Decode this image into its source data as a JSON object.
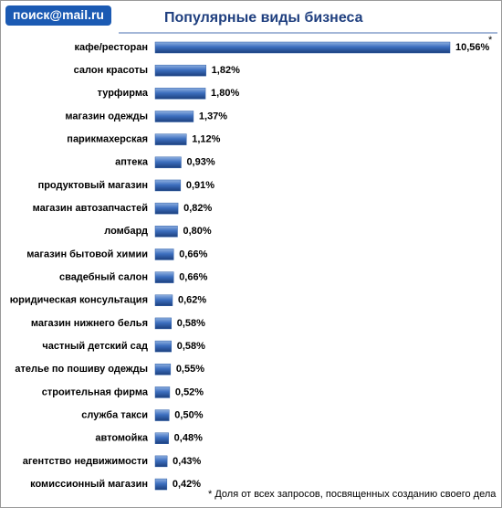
{
  "logo": "поиск@mail.ru",
  "chart_data": {
    "type": "hbar",
    "title": "Популярные виды бизнеса",
    "categories": [
      "кафе/ресторан",
      "салон красоты",
      "турфирма",
      "магазин одежды",
      "парикмахерская",
      "аптека",
      "продуктовый магазин",
      "магазин автозапчастей",
      "ломбард",
      "магазин бытовой химии",
      "свадебный салон",
      "юридическая консультация",
      "магазин нижнего белья",
      "частный детский сад",
      "ателье по пошиву одежды",
      "строительная фирма",
      "служба такси",
      "автомойка",
      "агентство недвижимости",
      "комиссионный магазин"
    ],
    "values": [
      10.56,
      1.82,
      1.8,
      1.37,
      1.12,
      0.93,
      0.91,
      0.82,
      0.8,
      0.66,
      0.66,
      0.62,
      0.58,
      0.58,
      0.55,
      0.52,
      0.5,
      0.48,
      0.43,
      0.42
    ],
    "value_labels": [
      "10,56%",
      "1,82%",
      "1,80%",
      "1,37%",
      "1,12%",
      "0,93%",
      "0,91%",
      "0,82%",
      "0,80%",
      "0,66%",
      "0,66%",
      "0,62%",
      "0,58%",
      "0,58%",
      "0,55%",
      "0,52%",
      "0,50%",
      "0,48%",
      "0,43%",
      "0,42%"
    ],
    "color": "#2f5fa8",
    "annotation": "*",
    "footnote": "* Доля от всех запросов, посвященных созданию своего дела"
  }
}
